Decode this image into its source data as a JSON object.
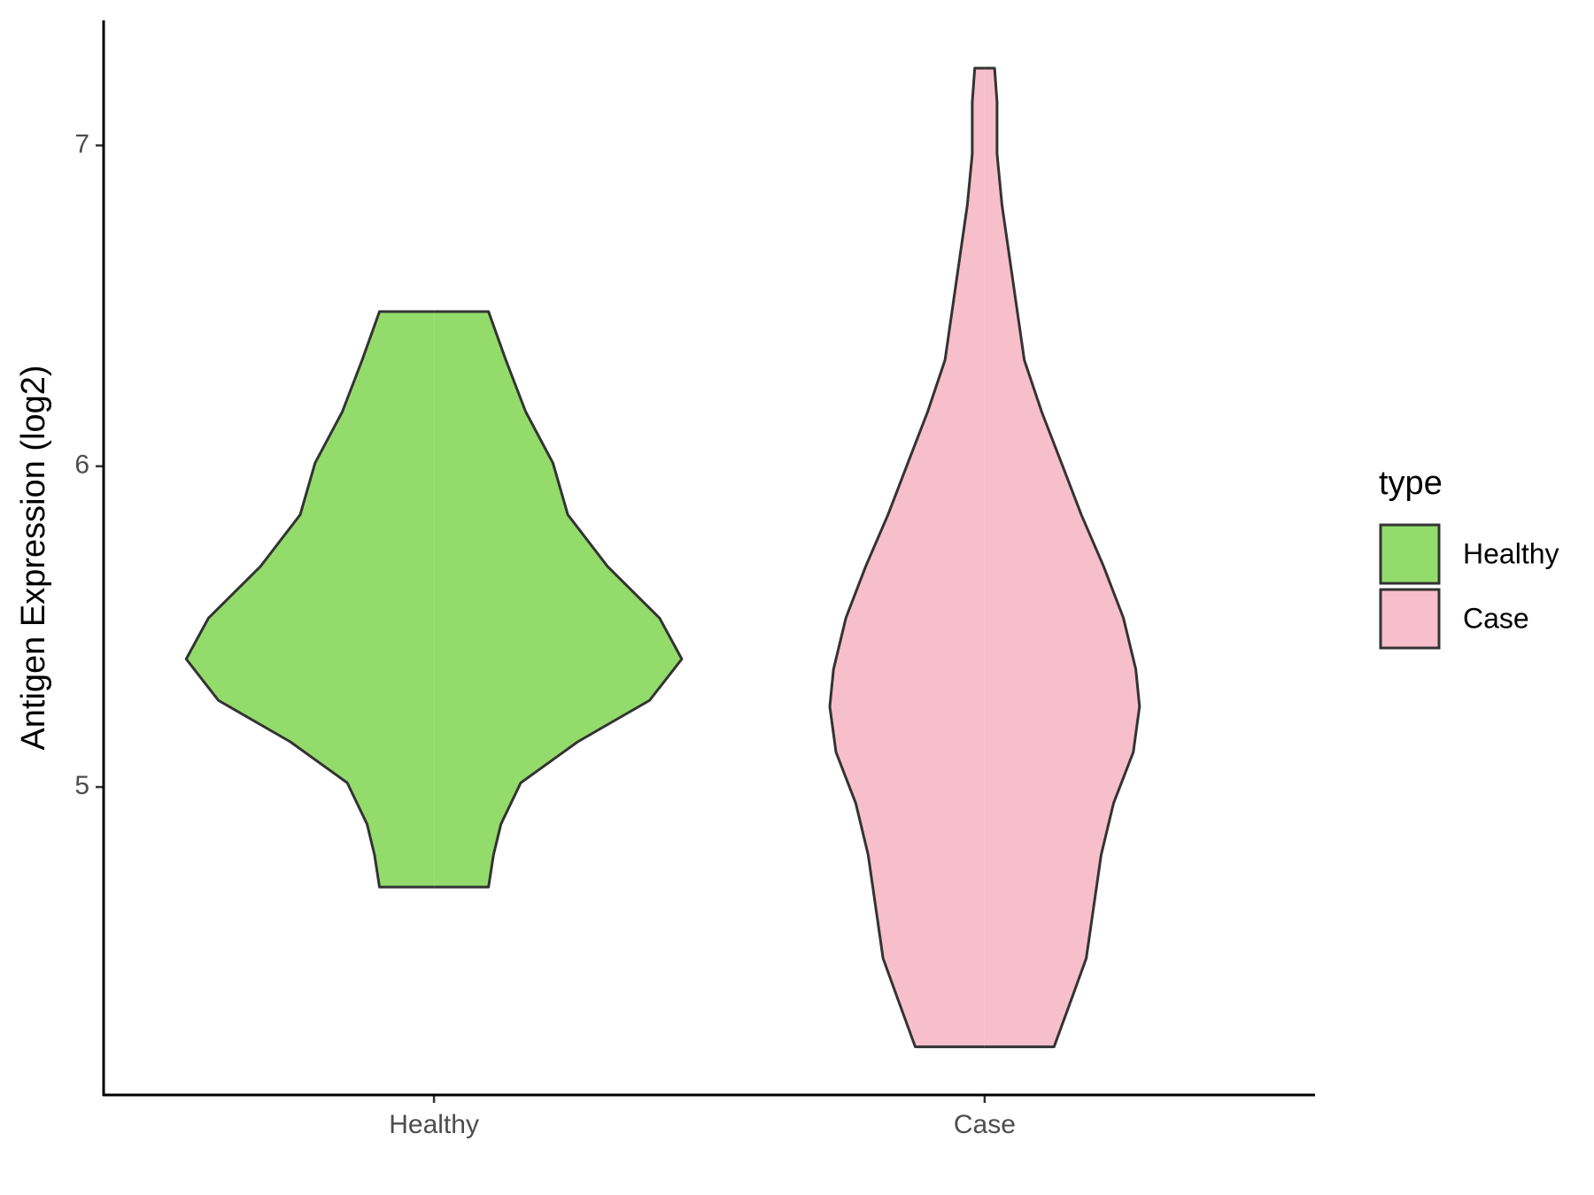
{
  "chart_data": {
    "type": "violin",
    "y_label": "Antigen Expression (log2)",
    "categories": [
      "Healthy",
      "Case"
    ],
    "ylim": [
      4.04,
      7.39
    ],
    "yticks": [
      5,
      6,
      7
    ],
    "legend_title": "type",
    "legend_position": "right",
    "series": [
      {
        "name": "Healthy",
        "color": "#93dc6b",
        "y": [
          6.482,
          6.331,
          6.17,
          6.01,
          5.849,
          5.688,
          5.527,
          5.399,
          5.27,
          5.141,
          5.013,
          4.884,
          4.788,
          4.688
        ],
        "width": [
          0.22,
          0.29,
          0.37,
          0.48,
          0.54,
          0.7,
          0.91,
          1.0,
          0.87,
          0.58,
          0.35,
          0.27,
          0.24,
          0.22
        ]
      },
      {
        "name": "Case",
        "color": "#f7bfcb",
        "y": [
          7.241,
          7.135,
          6.974,
          6.814,
          6.653,
          6.492,
          6.331,
          6.17,
          6.01,
          5.849,
          5.688,
          5.527,
          5.367,
          5.251,
          5.109,
          4.949,
          4.788,
          4.627,
          4.466,
          4.338,
          4.19
        ],
        "width": [
          0.04,
          0.05,
          0.05,
          0.07,
          0.1,
          0.13,
          0.16,
          0.23,
          0.31,
          0.39,
          0.48,
          0.56,
          0.61,
          0.625,
          0.6,
          0.52,
          0.47,
          0.44,
          0.41,
          0.35,
          0.28
        ]
      }
    ]
  }
}
